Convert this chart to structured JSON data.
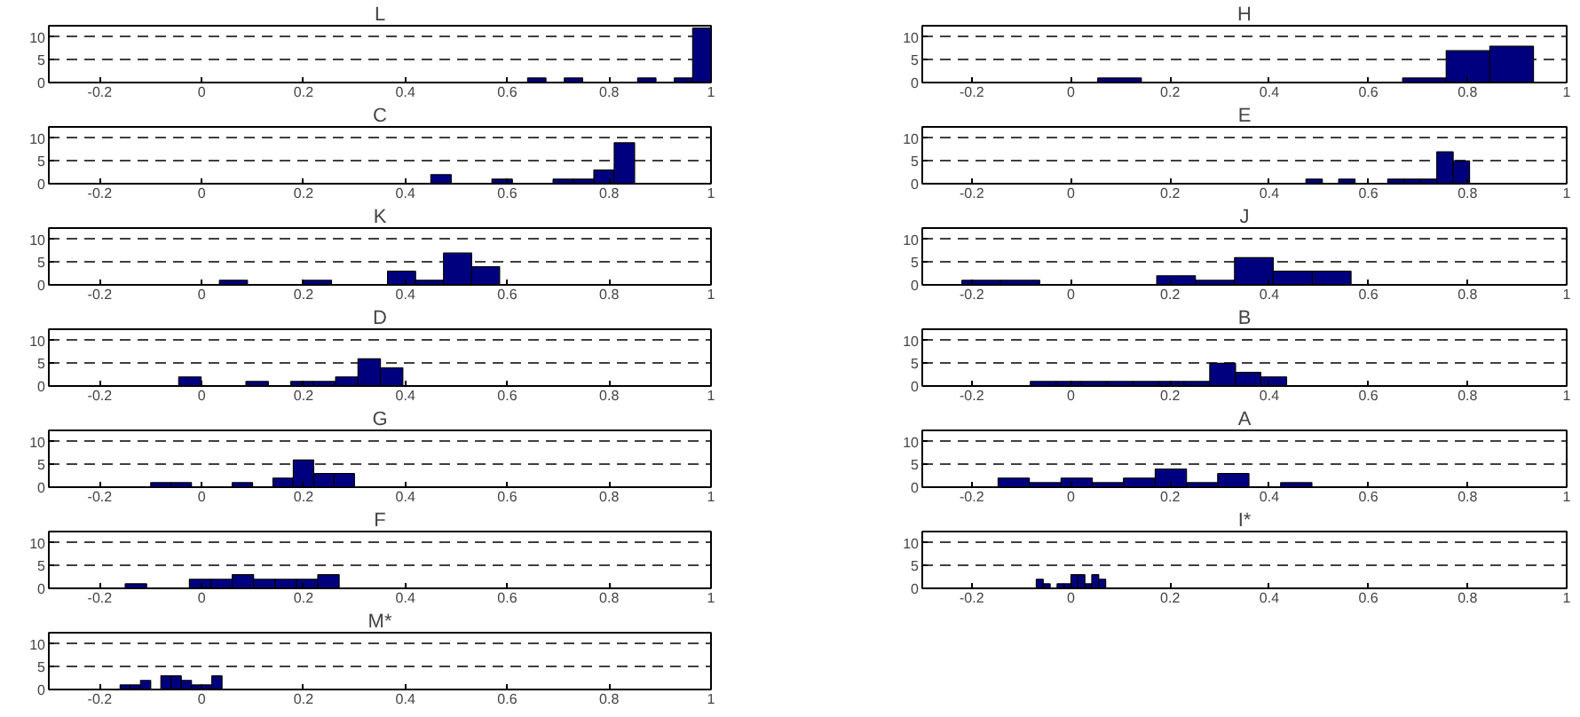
{
  "chart_data": [
    {
      "type": "histogram",
      "title": "L",
      "bins": [
        0.64,
        0.676,
        0.712,
        0.748,
        0.784,
        0.82,
        0.856,
        0.892,
        0.928,
        0.964,
        1.0
      ],
      "values": [
        1,
        0,
        1,
        0,
        0,
        0,
        1,
        0,
        1,
        12
      ],
      "color": "#00007f",
      "xlim": [
        -0.3,
        1
      ],
      "ylim": [
        0,
        12.5
      ],
      "xticks": [
        -0.2,
        0,
        0.2,
        0.4,
        0.6,
        0.8,
        1
      ],
      "yticks": [
        0,
        5,
        10
      ],
      "grid": "y"
    },
    {
      "type": "histogram",
      "title": "H",
      "bins": [
        0.054,
        0.142,
        0.23,
        0.318,
        0.405,
        0.493,
        0.581,
        0.669,
        0.757,
        0.845,
        0.933
      ],
      "values": [
        1,
        0,
        0,
        0,
        0,
        0,
        0,
        1,
        7,
        8
      ],
      "color": "#00007f",
      "xlim": [
        -0.3,
        1
      ],
      "ylim": [
        0,
        12.5
      ],
      "xticks": [
        -0.2,
        0,
        0.2,
        0.4,
        0.6,
        0.8,
        1
      ],
      "yticks": [
        0,
        5,
        10
      ],
      "grid": "y"
    },
    {
      "type": "histogram",
      "title": "C",
      "bins": [
        0.45,
        0.49,
        0.53,
        0.57,
        0.61,
        0.65,
        0.69,
        0.73,
        0.77,
        0.81,
        0.85
      ],
      "values": [
        2,
        0,
        0,
        1,
        0,
        0,
        1,
        1,
        3,
        9
      ],
      "color": "#00007f",
      "xlim": [
        -0.3,
        1
      ],
      "ylim": [
        0,
        12.5
      ],
      "xticks": [
        -0.2,
        0,
        0.2,
        0.4,
        0.6,
        0.8,
        1
      ],
      "yticks": [
        0,
        5,
        10
      ],
      "grid": "y"
    },
    {
      "type": "histogram",
      "title": "E",
      "bins": [
        0.474,
        0.507,
        0.54,
        0.573,
        0.606,
        0.639,
        0.672,
        0.705,
        0.738,
        0.771,
        0.804
      ],
      "values": [
        1,
        0,
        1,
        0,
        0,
        1,
        1,
        1,
        7,
        5
      ],
      "color": "#00007f",
      "xlim": [
        -0.3,
        1
      ],
      "ylim": [
        0,
        12.5
      ],
      "xticks": [
        -0.2,
        0,
        0.2,
        0.4,
        0.6,
        0.8,
        1
      ],
      "yticks": [
        0,
        5,
        10
      ],
      "grid": "y"
    },
    {
      "type": "histogram",
      "title": "K",
      "bins": [
        0.035,
        0.09,
        0.145,
        0.2,
        0.255,
        0.31,
        0.365,
        0.42,
        0.475,
        0.53,
        0.585
      ],
      "values": [
        1,
        0,
        0,
        1,
        0,
        0,
        3,
        1,
        7,
        4
      ],
      "color": "#00007f",
      "xlim": [
        -0.3,
        1
      ],
      "ylim": [
        0,
        12.5
      ],
      "xticks": [
        -0.2,
        0,
        0.2,
        0.4,
        0.6,
        0.8,
        1
      ],
      "yticks": [
        0,
        5,
        10
      ],
      "grid": "y"
    },
    {
      "type": "histogram",
      "title": "J",
      "bins": [
        -0.22,
        -0.142,
        -0.063,
        0.016,
        0.094,
        0.173,
        0.251,
        0.33,
        0.408,
        0.487,
        0.565
      ],
      "values": [
        1,
        1,
        0,
        0,
        0,
        2,
        1,
        6,
        3,
        3
      ],
      "color": "#00007f",
      "xlim": [
        -0.3,
        1
      ],
      "ylim": [
        0,
        12.5
      ],
      "xticks": [
        -0.2,
        0,
        0.2,
        0.4,
        0.6,
        0.8,
        1
      ],
      "yticks": [
        0,
        5,
        10
      ],
      "grid": "y"
    },
    {
      "type": "histogram",
      "title": "D",
      "bins": [
        -0.045,
        -0.001,
        0.043,
        0.087,
        0.131,
        0.175,
        0.219,
        0.263,
        0.307,
        0.351,
        0.395
      ],
      "values": [
        2,
        0,
        0,
        1,
        0,
        1,
        1,
        2,
        6,
        4
      ],
      "color": "#00007f",
      "xlim": [
        -0.3,
        1
      ],
      "ylim": [
        0,
        12.5
      ],
      "xticks": [
        -0.2,
        0,
        0.2,
        0.4,
        0.6,
        0.8,
        1
      ],
      "yticks": [
        0,
        5,
        10
      ],
      "grid": "y"
    },
    {
      "type": "histogram",
      "title": "B",
      "bins": [
        -0.082,
        -0.03,
        0.021,
        0.073,
        0.125,
        0.177,
        0.228,
        0.28,
        0.332,
        0.383,
        0.435
      ],
      "values": [
        1,
        1,
        1,
        1,
        1,
        1,
        1,
        5,
        3,
        2
      ],
      "color": "#00007f",
      "xlim": [
        -0.3,
        1
      ],
      "ylim": [
        0,
        12.5
      ],
      "xticks": [
        -0.2,
        0,
        0.2,
        0.4,
        0.6,
        0.8,
        1
      ],
      "yticks": [
        0,
        5,
        10
      ],
      "grid": "y"
    },
    {
      "type": "histogram",
      "title": "G",
      "bins": [
        -0.1,
        -0.06,
        -0.02,
        0.02,
        0.06,
        0.1,
        0.14,
        0.18,
        0.22,
        0.26,
        0.3
      ],
      "values": [
        1,
        1,
        0,
        0,
        1,
        0,
        2,
        6,
        3,
        3
      ],
      "color": "#00007f",
      "xlim": [
        -0.3,
        1
      ],
      "ylim": [
        0,
        12.5
      ],
      "xticks": [
        -0.2,
        0,
        0.2,
        0.4,
        0.6,
        0.8,
        1
      ],
      "yticks": [
        0,
        5,
        10
      ],
      "grid": "y"
    },
    {
      "type": "histogram",
      "title": "A",
      "bins": [
        -0.147,
        -0.084,
        -0.02,
        0.043,
        0.106,
        0.17,
        0.233,
        0.296,
        0.359,
        0.423,
        0.486
      ],
      "values": [
        2,
        1,
        2,
        1,
        2,
        4,
        1,
        3,
        0,
        1
      ],
      "color": "#00007f",
      "xlim": [
        -0.3,
        1
      ],
      "ylim": [
        0,
        12.5
      ],
      "xticks": [
        -0.2,
        0,
        0.2,
        0.4,
        0.6,
        0.8,
        1
      ],
      "yticks": [
        0,
        5,
        10
      ],
      "grid": "y"
    },
    {
      "type": "histogram",
      "title": "F",
      "bins": [
        -0.15,
        -0.108,
        -0.066,
        -0.024,
        0.018,
        0.06,
        0.102,
        0.144,
        0.186,
        0.228,
        0.27
      ],
      "values": [
        1,
        0,
        0,
        2,
        2,
        3,
        2,
        2,
        2,
        3
      ],
      "color": "#00007f",
      "xlim": [
        -0.3,
        1
      ],
      "ylim": [
        0,
        12.5
      ],
      "xticks": [
        -0.2,
        0,
        0.2,
        0.4,
        0.6,
        0.8,
        1
      ],
      "yticks": [
        0,
        5,
        10
      ],
      "grid": "y"
    },
    {
      "type": "histogram",
      "title": "I*",
      "bins": [
        -0.07,
        -0.056,
        -0.042,
        -0.028,
        -0.014,
        0,
        0.014,
        0.028,
        0.042,
        0.056,
        0.07
      ],
      "values": [
        2,
        1,
        0,
        1,
        1,
        3,
        3,
        1,
        3,
        2
      ],
      "color": "#00007f",
      "xlim": [
        -0.3,
        1
      ],
      "ylim": [
        0,
        12.5
      ],
      "xticks": [
        -0.2,
        0,
        0.2,
        0.4,
        0.6,
        0.8,
        1
      ],
      "yticks": [
        0,
        5,
        10
      ],
      "grid": "y"
    },
    {
      "type": "histogram",
      "title": "M*",
      "bins": [
        -0.16,
        -0.14,
        -0.12,
        -0.1,
        -0.08,
        -0.06,
        -0.04,
        -0.02,
        0,
        0.02,
        0.04
      ],
      "values": [
        1,
        1,
        2,
        0,
        3,
        3,
        2,
        1,
        1,
        3
      ],
      "color": "#00007f",
      "xlim": [
        -0.3,
        1
      ],
      "ylim": [
        0,
        12.5
      ],
      "xticks": [
        -0.2,
        0,
        0.2,
        0.4,
        0.6,
        0.8,
        1
      ],
      "yticks": [
        0,
        5,
        10
      ],
      "grid": "y"
    }
  ]
}
